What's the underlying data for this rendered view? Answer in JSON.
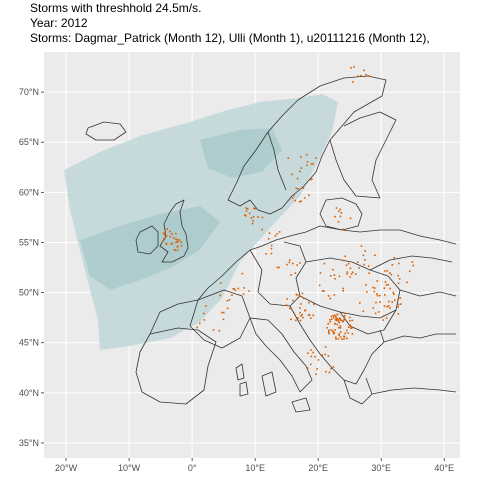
{
  "titles": {
    "line1": "Storms with threshhold 24.5m/s.",
    "line2": "Year: 2012",
    "line3": "Storms: Dagmar_Patrick (Month 12), Ulli (Month 1), u20111216 (Month 12),"
  },
  "map": {
    "lon_range": [
      -23.5,
      42.5
    ],
    "lat_range": [
      33.5,
      74.0
    ],
    "x_ticks": [
      {
        "value": -20,
        "label": "20°W"
      },
      {
        "value": -10,
        "label": "10°W"
      },
      {
        "value": 0,
        "label": "0°"
      },
      {
        "value": 10,
        "label": "10°E"
      },
      {
        "value": 20,
        "label": "20°E"
      },
      {
        "value": 30,
        "label": "30°E"
      },
      {
        "value": 40,
        "label": "40°E"
      }
    ],
    "y_ticks": [
      {
        "value": 35,
        "label": "35°N"
      },
      {
        "value": 40,
        "label": "40°N"
      },
      {
        "value": 45,
        "label": "45°N"
      },
      {
        "value": 50,
        "label": "50°N"
      },
      {
        "value": 55,
        "label": "55°N"
      },
      {
        "value": 60,
        "label": "60°N"
      },
      {
        "value": 65,
        "label": "65°N"
      },
      {
        "value": 70,
        "label": "70°N"
      }
    ],
    "colors": {
      "panel": "#ebebeb",
      "grid": "#ffffff",
      "swath": "#bfd6d8",
      "storm_points": "#d95f02",
      "borders": "#333333"
    }
  }
}
